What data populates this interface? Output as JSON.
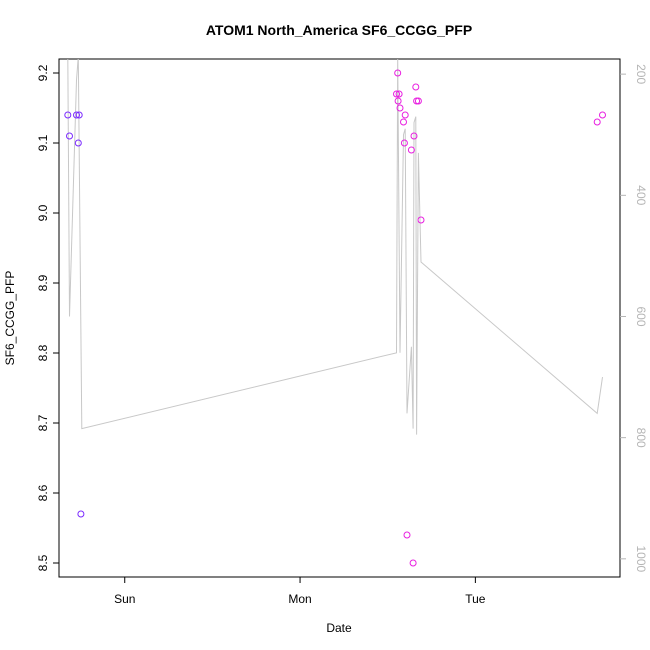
{
  "chart_data": {
    "type": "scatter",
    "title": "ATOM1 North_America SF6_CCGG_PFP",
    "xlabel": "Date",
    "ylabel": "SF6_CCGG_PFP",
    "x_axis": {
      "unit": "days",
      "range": [
        0,
        3.2
      ],
      "ticks": [
        {
          "value": 0.375,
          "label": "Sun"
        },
        {
          "value": 1.375,
          "label": "Mon"
        },
        {
          "value": 2.375,
          "label": "Tue"
        }
      ]
    },
    "y_left": {
      "range": [
        8.48,
        9.22
      ],
      "ticks": [
        8.5,
        8.6,
        8.7,
        8.8,
        8.9,
        9.0,
        9.1,
        9.2
      ]
    },
    "y_right": {
      "range": [
        1030,
        175
      ],
      "ticks": [
        200,
        400,
        600,
        800,
        1000
      ],
      "color": "#b5b5b5"
    },
    "points": [
      {
        "x": 0.05,
        "y": 9.14,
        "color": "#7b2bff"
      },
      {
        "x": 0.06,
        "y": 9.11,
        "color": "#7b2bff"
      },
      {
        "x": 0.1,
        "y": 9.14,
        "color": "#7b2bff"
      },
      {
        "x": 0.11,
        "y": 9.1,
        "color": "#7b2bff"
      },
      {
        "x": 0.115,
        "y": 9.14,
        "color": "#7b2bff"
      },
      {
        "x": 0.125,
        "y": 8.57,
        "color": "#7b2bff"
      },
      {
        "x": 1.925,
        "y": 9.17,
        "color": "#e81fe0"
      },
      {
        "x": 1.932,
        "y": 9.2,
        "color": "#e81fe0"
      },
      {
        "x": 1.934,
        "y": 9.16,
        "color": "#e81fe0"
      },
      {
        "x": 1.94,
        "y": 9.17,
        "color": "#e81fe0"
      },
      {
        "x": 1.945,
        "y": 9.15,
        "color": "#e81fe0"
      },
      {
        "x": 1.965,
        "y": 9.13,
        "color": "#e81fe0"
      },
      {
        "x": 1.97,
        "y": 9.1,
        "color": "#e81fe0"
      },
      {
        "x": 1.975,
        "y": 9.14,
        "color": "#e81fe0"
      },
      {
        "x": 1.985,
        "y": 8.54,
        "color": "#e81fe0"
      },
      {
        "x": 2.01,
        "y": 9.09,
        "color": "#e81fe0"
      },
      {
        "x": 2.02,
        "y": 8.5,
        "color": "#e81fe0"
      },
      {
        "x": 2.025,
        "y": 9.11,
        "color": "#e81fe0"
      },
      {
        "x": 2.035,
        "y": 9.18,
        "color": "#e81fe0"
      },
      {
        "x": 2.04,
        "y": 9.16,
        "color": "#e81fe0"
      },
      {
        "x": 2.05,
        "y": 9.16,
        "color": "#e81fe0"
      },
      {
        "x": 2.065,
        "y": 8.99,
        "color": "#e81fe0"
      },
      {
        "x": 3.07,
        "y": 9.13,
        "color": "#e81fe0"
      },
      {
        "x": 3.1,
        "y": 9.14,
        "color": "#e81fe0"
      }
    ],
    "line_series": {
      "axis": "y_right",
      "color": "#c8c8c8",
      "points": [
        {
          "x": 0.05,
          "y": 170
        },
        {
          "x": 0.06,
          "y": 600
        },
        {
          "x": 0.1,
          "y": 210
        },
        {
          "x": 0.11,
          "y": 170
        },
        {
          "x": 0.13,
          "y": 785
        },
        {
          "x": 1.925,
          "y": 660
        },
        {
          "x": 1.932,
          "y": 170
        },
        {
          "x": 1.945,
          "y": 660
        },
        {
          "x": 1.965,
          "y": 300
        },
        {
          "x": 1.975,
          "y": 290
        },
        {
          "x": 1.985,
          "y": 760
        },
        {
          "x": 2.01,
          "y": 650
        },
        {
          "x": 2.02,
          "y": 785
        },
        {
          "x": 2.025,
          "y": 280
        },
        {
          "x": 2.035,
          "y": 270
        },
        {
          "x": 2.04,
          "y": 795
        },
        {
          "x": 2.05,
          "y": 330
        },
        {
          "x": 2.065,
          "y": 510
        },
        {
          "x": 3.07,
          "y": 760
        },
        {
          "x": 3.1,
          "y": 700
        }
      ]
    }
  }
}
